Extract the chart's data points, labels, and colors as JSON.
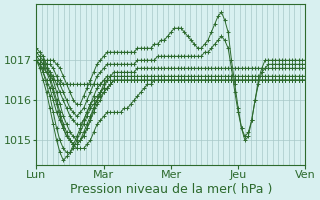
{
  "background_color": "#d8f0f0",
  "grid_color": "#a8c8c8",
  "line_color": "#2d6a2d",
  "xlabel": "Pression niveau de la mer( hPa )",
  "xlabel_fontsize": 9,
  "tick_fontsize": 8,
  "ylim": [
    1014.4,
    1018.4
  ],
  "yticks": [
    1015,
    1016,
    1017
  ],
  "days": [
    "Lun",
    "Mar",
    "Mer",
    "Jeu",
    "Ven"
  ],
  "day_positions": [
    0,
    1,
    2,
    3,
    4
  ],
  "series": [
    [
      1017.0,
      1016.9,
      1016.8,
      1016.7,
      1016.6,
      1016.5,
      1016.5,
      1016.5,
      1016.4,
      1016.4,
      1016.4,
      1016.4,
      1016.4,
      1016.4,
      1016.4,
      1016.4,
      1016.4,
      1016.4,
      1016.4,
      1016.4,
      1016.5,
      1016.5,
      1016.5,
      1016.5,
      1016.5,
      1016.5,
      1016.5,
      1016.5,
      1016.5,
      1016.5,
      1016.5,
      1016.5,
      1016.5,
      1016.5,
      1016.5,
      1016.5,
      1016.5,
      1016.5,
      1016.5,
      1016.5,
      1016.5,
      1016.5,
      1016.5,
      1016.5,
      1016.5,
      1016.5,
      1016.5,
      1016.5,
      1016.5,
      1016.5,
      1016.5,
      1016.5,
      1016.5,
      1016.5,
      1016.5,
      1016.5,
      1016.5,
      1016.5,
      1016.5,
      1016.5,
      1016.5,
      1016.5,
      1016.5,
      1016.5,
      1016.5,
      1016.5,
      1016.5,
      1016.5,
      1016.5,
      1016.5,
      1016.5,
      1016.5,
      1016.5,
      1016.5,
      1016.5,
      1016.5,
      1016.5,
      1016.5,
      1016.5,
      1016.5,
      1016.5
    ],
    [
      1017.0,
      1016.9,
      1016.7,
      1016.5,
      1016.3,
      1016.0,
      1015.7,
      1015.5,
      1015.3,
      1015.1,
      1015.0,
      1014.9,
      1014.8,
      1014.8,
      1014.8,
      1014.9,
      1015.0,
      1015.2,
      1015.4,
      1015.5,
      1015.6,
      1015.7,
      1015.7,
      1015.7,
      1015.7,
      1015.7,
      1015.8,
      1015.8,
      1015.9,
      1016.0,
      1016.1,
      1016.2,
      1016.3,
      1016.4,
      1016.4,
      1016.5,
      1016.5,
      1016.5,
      1016.5,
      1016.5,
      1016.5,
      1016.5,
      1016.5,
      1016.5,
      1016.5,
      1016.5,
      1016.5,
      1016.5,
      1016.5,
      1016.5,
      1016.5,
      1016.5,
      1016.5,
      1016.5,
      1016.5,
      1016.5,
      1016.5,
      1016.5,
      1016.5,
      1016.5,
      1016.5,
      1016.5,
      1016.5,
      1016.5,
      1016.5,
      1016.5,
      1016.5,
      1016.5,
      1016.5,
      1016.5,
      1016.5,
      1016.5,
      1016.5,
      1016.5,
      1016.5,
      1016.5,
      1016.5,
      1016.5,
      1016.5,
      1016.5,
      1016.5
    ],
    [
      1017.0,
      1016.8,
      1016.5,
      1016.2,
      1015.8,
      1015.4,
      1015.0,
      1014.7,
      1014.5,
      1014.6,
      1014.7,
      1014.9,
      1015.1,
      1015.3,
      1015.5,
      1015.7,
      1015.9,
      1016.0,
      1016.1,
      1016.2,
      1016.3,
      1016.3,
      1016.4,
      1016.5,
      1016.5,
      1016.5,
      1016.5,
      1016.5,
      1016.5,
      1016.5,
      1016.5,
      1016.5,
      1016.5,
      1016.5,
      1016.5,
      1016.5,
      1016.5,
      1016.5,
      1016.5,
      1016.5,
      1016.5,
      1016.5,
      1016.5,
      1016.5,
      1016.5,
      1016.5,
      1016.5,
      1016.5,
      1016.5,
      1016.5,
      1016.5,
      1016.5,
      1016.5,
      1016.5,
      1016.5,
      1016.5,
      1016.5,
      1016.5,
      1016.5,
      1016.5,
      1016.5,
      1016.5,
      1016.5,
      1016.5,
      1016.5,
      1016.5,
      1016.5,
      1016.5,
      1016.5,
      1016.5,
      1016.5,
      1016.5,
      1016.5,
      1016.5,
      1016.5,
      1016.5,
      1016.5,
      1016.5,
      1016.5,
      1016.5,
      1016.5
    ],
    [
      1017.0,
      1016.9,
      1016.7,
      1016.4,
      1016.1,
      1015.7,
      1015.3,
      1015.0,
      1014.8,
      1014.7,
      1014.7,
      1014.8,
      1015.0,
      1015.2,
      1015.4,
      1015.6,
      1015.8,
      1015.9,
      1016.0,
      1016.1,
      1016.2,
      1016.3,
      1016.4,
      1016.5,
      1016.5,
      1016.5,
      1016.5,
      1016.5,
      1016.5,
      1016.5,
      1016.5,
      1016.5,
      1016.5,
      1016.5,
      1016.5,
      1016.5,
      1016.5,
      1016.5,
      1016.5,
      1016.5,
      1016.5,
      1016.5,
      1016.5,
      1016.5,
      1016.5,
      1016.5,
      1016.5,
      1016.5,
      1016.5,
      1016.5,
      1016.5,
      1016.5,
      1016.5,
      1016.5,
      1016.5,
      1016.5,
      1016.5,
      1016.5,
      1016.5,
      1016.5,
      1016.5,
      1016.5,
      1016.5,
      1016.5,
      1016.5,
      1016.5,
      1016.5,
      1016.5,
      1016.5,
      1016.5,
      1016.5,
      1016.5,
      1016.5,
      1016.5,
      1016.5,
      1016.5,
      1016.5,
      1016.5,
      1016.5,
      1016.5,
      1016.5
    ],
    [
      1017.1,
      1017.0,
      1016.9,
      1016.7,
      1016.5,
      1016.2,
      1015.9,
      1015.6,
      1015.3,
      1015.1,
      1015.0,
      1014.9,
      1014.9,
      1015.0,
      1015.1,
      1015.3,
      1015.5,
      1015.7,
      1015.9,
      1016.0,
      1016.2,
      1016.3,
      1016.4,
      1016.5,
      1016.5,
      1016.5,
      1016.5,
      1016.5,
      1016.5,
      1016.5,
      1016.5,
      1016.5,
      1016.5,
      1016.5,
      1016.5,
      1016.5,
      1016.5,
      1016.5,
      1016.5,
      1016.5,
      1016.5,
      1016.5,
      1016.5,
      1016.5,
      1016.5,
      1016.5,
      1016.5,
      1016.5,
      1016.5,
      1016.5,
      1016.5,
      1016.5,
      1016.5,
      1016.5,
      1016.5,
      1016.5,
      1016.5,
      1016.5,
      1016.5,
      1016.5,
      1016.5,
      1016.5,
      1016.5,
      1016.5,
      1016.5,
      1016.5,
      1016.5,
      1016.5,
      1016.5,
      1016.5,
      1016.5,
      1016.5,
      1016.5,
      1016.5,
      1016.5,
      1016.5,
      1016.5,
      1016.5,
      1016.5,
      1016.5,
      1016.5
    ],
    [
      1017.2,
      1017.1,
      1017.0,
      1016.8,
      1016.6,
      1016.3,
      1016.0,
      1015.7,
      1015.4,
      1015.2,
      1015.0,
      1014.9,
      1014.9,
      1015.0,
      1015.2,
      1015.4,
      1015.6,
      1015.8,
      1016.0,
      1016.2,
      1016.3,
      1016.5,
      1016.5,
      1016.5,
      1016.5,
      1016.5,
      1016.5,
      1016.5,
      1016.5,
      1016.5,
      1016.5,
      1016.5,
      1016.5,
      1016.5,
      1016.5,
      1016.5,
      1016.5,
      1016.5,
      1016.5,
      1016.5,
      1016.5,
      1016.5,
      1016.5,
      1016.5,
      1016.5,
      1016.5,
      1016.5,
      1016.5,
      1016.5,
      1016.5,
      1016.5,
      1016.5,
      1016.5,
      1016.5,
      1016.5,
      1016.5,
      1016.5,
      1016.5,
      1016.5,
      1016.5,
      1016.5,
      1016.5,
      1016.5,
      1016.5,
      1016.5,
      1016.5,
      1016.5,
      1016.5,
      1016.5,
      1016.5,
      1016.5,
      1016.5,
      1016.5,
      1016.5,
      1016.5,
      1016.5,
      1016.5,
      1016.5,
      1016.5,
      1016.5,
      1016.5
    ],
    [
      1017.3,
      1017.2,
      1017.1,
      1016.9,
      1016.7,
      1016.5,
      1016.2,
      1015.9,
      1015.6,
      1015.4,
      1015.2,
      1015.1,
      1015.0,
      1015.0,
      1015.1,
      1015.3,
      1015.5,
      1015.8,
      1016.0,
      1016.2,
      1016.4,
      1016.5,
      1016.6,
      1016.6,
      1016.6,
      1016.6,
      1016.6,
      1016.6,
      1016.6,
      1016.6,
      1016.6,
      1016.6,
      1016.6,
      1016.6,
      1016.6,
      1016.6,
      1016.6,
      1016.6,
      1016.6,
      1016.6,
      1016.6,
      1016.6,
      1016.6,
      1016.6,
      1016.6,
      1016.6,
      1016.6,
      1016.6,
      1016.6,
      1016.6,
      1016.6,
      1016.6,
      1016.6,
      1016.6,
      1016.6,
      1016.6,
      1016.6,
      1016.6,
      1016.6,
      1016.6,
      1016.6,
      1016.6,
      1016.6,
      1016.6,
      1016.6,
      1016.6,
      1016.6,
      1016.6,
      1016.6,
      1016.6,
      1016.6,
      1016.6,
      1016.6,
      1016.6,
      1016.6,
      1016.6,
      1016.6,
      1016.6,
      1016.6,
      1016.6,
      1016.6
    ],
    [
      1017.0,
      1017.0,
      1016.9,
      1016.8,
      1016.7,
      1016.6,
      1016.4,
      1016.2,
      1016.0,
      1015.8,
      1015.6,
      1015.5,
      1015.4,
      1015.4,
      1015.5,
      1015.7,
      1015.9,
      1016.1,
      1016.3,
      1016.4,
      1016.5,
      1016.6,
      1016.6,
      1016.7,
      1016.7,
      1016.7,
      1016.7,
      1016.7,
      1016.7,
      1016.7,
      1016.8,
      1016.8,
      1016.8,
      1016.8,
      1016.8,
      1016.8,
      1016.8,
      1016.8,
      1016.8,
      1016.8,
      1016.8,
      1016.8,
      1016.8,
      1016.8,
      1016.8,
      1016.8,
      1016.8,
      1016.8,
      1016.8,
      1016.8,
      1016.8,
      1016.8,
      1016.8,
      1016.8,
      1016.8,
      1016.8,
      1016.8,
      1016.8,
      1016.8,
      1016.8,
      1016.8,
      1016.8,
      1016.8,
      1016.8,
      1016.8,
      1016.8,
      1016.8,
      1016.8,
      1016.8,
      1016.8,
      1016.8,
      1016.8,
      1016.8,
      1016.8,
      1016.8,
      1016.8,
      1016.8,
      1016.8,
      1016.8,
      1016.8,
      1016.8
    ],
    [
      1017.0,
      1017.0,
      1017.0,
      1016.9,
      1016.9,
      1016.8,
      1016.6,
      1016.4,
      1016.2,
      1016.0,
      1015.8,
      1015.7,
      1015.6,
      1015.7,
      1015.8,
      1016.0,
      1016.2,
      1016.4,
      1016.6,
      1016.7,
      1016.8,
      1016.9,
      1016.9,
      1016.9,
      1016.9,
      1016.9,
      1016.9,
      1016.9,
      1016.9,
      1016.9,
      1017.0,
      1017.0,
      1017.0,
      1017.0,
      1017.0,
      1017.0,
      1017.1,
      1017.1,
      1017.1,
      1017.1,
      1017.1,
      1017.1,
      1017.1,
      1017.1,
      1017.1,
      1017.1,
      1017.1,
      1017.1,
      1017.1,
      1017.1,
      1017.2,
      1017.2,
      1017.3,
      1017.4,
      1017.5,
      1017.6,
      1017.5,
      1017.3,
      1016.8,
      1016.2,
      1015.7,
      1015.3,
      1015.1,
      1015.2,
      1015.5,
      1016.0,
      1016.4,
      1016.7,
      1016.8,
      1016.9,
      1016.9,
      1016.9,
      1016.9,
      1016.9,
      1016.9,
      1016.9,
      1016.9,
      1016.9,
      1016.9,
      1016.9,
      1016.9
    ],
    [
      1017.0,
      1017.0,
      1017.0,
      1017.0,
      1017.0,
      1017.0,
      1016.9,
      1016.8,
      1016.6,
      1016.4,
      1016.2,
      1016.0,
      1015.9,
      1015.9,
      1016.1,
      1016.3,
      1016.5,
      1016.7,
      1016.9,
      1017.0,
      1017.1,
      1017.2,
      1017.2,
      1017.2,
      1017.2,
      1017.2,
      1017.2,
      1017.2,
      1017.2,
      1017.2,
      1017.3,
      1017.3,
      1017.3,
      1017.3,
      1017.3,
      1017.4,
      1017.4,
      1017.5,
      1017.5,
      1017.6,
      1017.7,
      1017.8,
      1017.8,
      1017.8,
      1017.7,
      1017.6,
      1017.5,
      1017.4,
      1017.3,
      1017.3,
      1017.4,
      1017.5,
      1017.7,
      1017.9,
      1018.1,
      1018.2,
      1018.0,
      1017.7,
      1017.0,
      1016.4,
      1015.8,
      1015.3,
      1015.0,
      1015.1,
      1015.5,
      1016.0,
      1016.5,
      1016.8,
      1017.0,
      1017.0,
      1017.0,
      1017.0,
      1017.0,
      1017.0,
      1017.0,
      1017.0,
      1017.0,
      1017.0,
      1017.0,
      1017.0,
      1017.0
    ]
  ]
}
